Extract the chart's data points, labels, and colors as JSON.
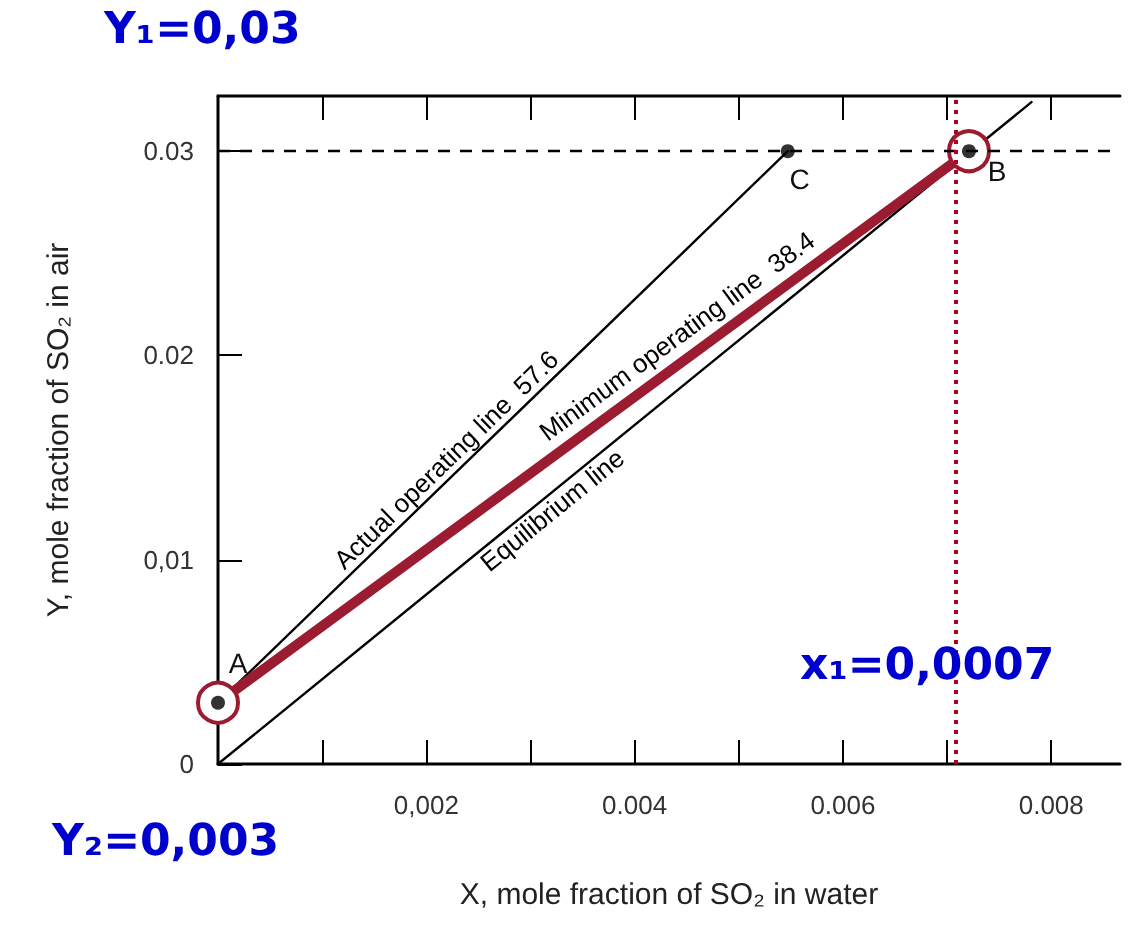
{
  "chart_data": {
    "type": "line",
    "xlabel": "X, mole fraction of SO₂ in water",
    "ylabel": "Y, mole fraction of SO₂ in air",
    "xlim": [
      0,
      0.00866
    ],
    "ylim": [
      0,
      0.0327
    ],
    "xticks": [
      {
        "value": 0.001,
        "label": null
      },
      {
        "value": 0.002,
        "label": "0,002"
      },
      {
        "value": 0.003,
        "label": null
      },
      {
        "value": 0.004,
        "label": "0.004"
      },
      {
        "value": 0.005,
        "label": null
      },
      {
        "value": 0.006,
        "label": "0.006"
      },
      {
        "value": 0.007,
        "label": null
      },
      {
        "value": 0.008,
        "label": "0.008"
      }
    ],
    "yticks": [
      0,
      {
        "value": 0.01,
        "label": "0,01"
      },
      0.02,
      0.03
    ],
    "series": [
      {
        "type": "line",
        "name": "Actual operating line  57.6",
        "color": "#000000",
        "x": [
          0,
          0.00547
        ],
        "values": [
          0.003,
          0.03
        ]
      },
      {
        "type": "line",
        "name": "Minimum operating line  38.4",
        "marker": "circle",
        "color": "#9b1b30",
        "x": [
          0,
          0.00721
        ],
        "values": [
          0.003,
          0.03
        ]
      },
      {
        "type": "line",
        "name": "Equilibrium line",
        "color": "#000000",
        "x": [
          0,
          0.00781
        ],
        "values": [
          0,
          0.0324
        ]
      },
      {
        "type": "scatter",
        "marker": "circle",
        "color": "#000000",
        "x": [
          0,
          0.00547,
          0.00721
        ],
        "values": [
          0.003,
          0.03,
          0.03
        ]
      }
    ],
    "marker": "none",
    "ref_lines": [
      {
        "axis": "y",
        "value": 0.03,
        "color": "#000000",
        "line_style": "dashed"
      },
      {
        "axis": "x",
        "value": 0.00709,
        "color": "#b00020",
        "line_style": "dotted"
      }
    ],
    "annotations": [
      {
        "text": "A",
        "x": 0,
        "y": 0.003
      },
      {
        "text": "C",
        "x": 0.00547,
        "y": 0.03
      },
      {
        "text": "B",
        "x": 0.00721,
        "y": 0.03
      },
      "Y₁=0,03",
      "x₁=0,0007",
      "Y₂=0,003"
    ],
    "grid": false,
    "legend": false
  }
}
